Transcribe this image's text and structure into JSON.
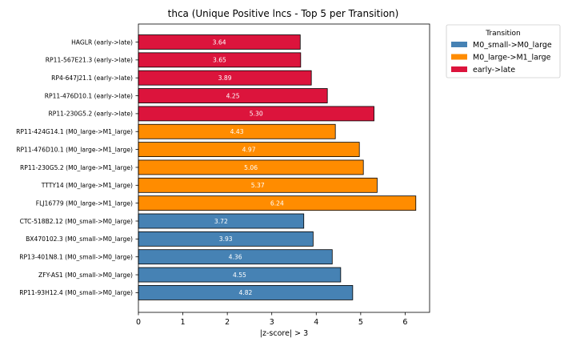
{
  "chart_data": {
    "type": "bar",
    "orientation": "horizontal",
    "title": "thca (Unique Positive lncs - Top 5 per Transition)",
    "xlabel": "|z-score| > 3",
    "ylabel": "",
    "xlim": [
      0,
      6.55
    ],
    "xticks": [
      "0",
      "1",
      "2",
      "3",
      "4",
      "5",
      "6"
    ],
    "grid": false,
    "legend": {
      "title": "Transition",
      "placement": "outside-top-right",
      "entries": [
        {
          "name": "M0_small->M0_large",
          "color": "#4682b4"
        },
        {
          "name": "M0_large->M1_large",
          "color": "#ff8c00"
        },
        {
          "name": "early->late",
          "color": "#dc143c"
        }
      ]
    },
    "bars": [
      {
        "label": "HAGLR (early->late)",
        "value": 3.64,
        "value_label": "3.64",
        "group": "early->late"
      },
      {
        "label": "RP11-567E21.3 (early->late)",
        "value": 3.65,
        "value_label": "3.65",
        "group": "early->late"
      },
      {
        "label": "RP4-647J21.1 (early->late)",
        "value": 3.89,
        "value_label": "3.89",
        "group": "early->late"
      },
      {
        "label": "RP11-476D10.1 (early->late)",
        "value": 4.25,
        "value_label": "4.25",
        "group": "early->late"
      },
      {
        "label": "RP11-230G5.2 (early->late)",
        "value": 5.3,
        "value_label": "5.30",
        "group": "early->late"
      },
      {
        "label": "RP11-424G14.1 (M0_large->M1_large)",
        "value": 4.43,
        "value_label": "4.43",
        "group": "M0_large->M1_large"
      },
      {
        "label": "RP11-476D10.1 (M0_large->M1_large)",
        "value": 4.97,
        "value_label": "4.97",
        "group": "M0_large->M1_large"
      },
      {
        "label": "RP11-230G5.2 (M0_large->M1_large)",
        "value": 5.06,
        "value_label": "5.06",
        "group": "M0_large->M1_large"
      },
      {
        "label": "TTTY14 (M0_large->M1_large)",
        "value": 5.37,
        "value_label": "5.37",
        "group": "M0_large->M1_large"
      },
      {
        "label": "FLJ16779 (M0_large->M1_large)",
        "value": 6.24,
        "value_label": "6.24",
        "group": "M0_large->M1_large"
      },
      {
        "label": "CTC-518B2.12 (M0_small->M0_large)",
        "value": 3.72,
        "value_label": "3.72",
        "group": "M0_small->M0_large"
      },
      {
        "label": "BX470102.3 (M0_small->M0_large)",
        "value": 3.93,
        "value_label": "3.93",
        "group": "M0_small->M0_large"
      },
      {
        "label": "RP13-401N8.1 (M0_small->M0_large)",
        "value": 4.36,
        "value_label": "4.36",
        "group": "M0_small->M0_large"
      },
      {
        "label": "ZFY-AS1 (M0_small->M0_large)",
        "value": 4.55,
        "value_label": "4.55",
        "group": "M0_small->M0_large"
      },
      {
        "label": "RP11-93H12.4 (M0_small->M0_large)",
        "value": 4.82,
        "value_label": "4.82",
        "group": "M0_small->M0_large"
      }
    ]
  }
}
